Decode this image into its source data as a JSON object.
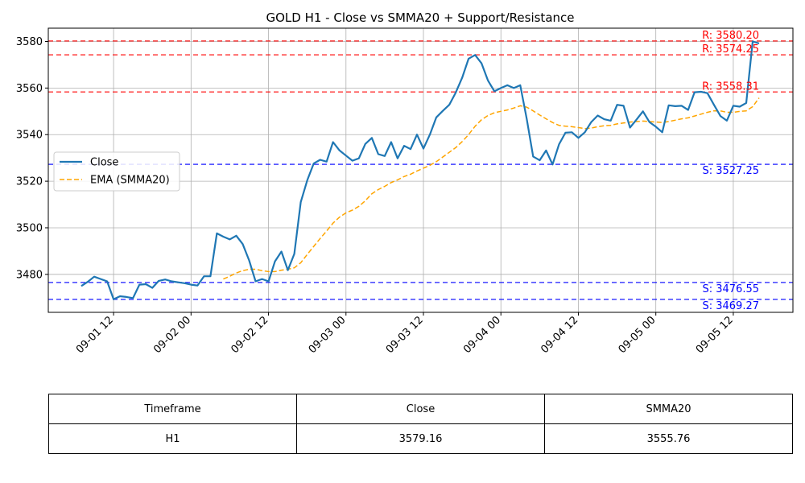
{
  "chart_data": {
    "type": "line",
    "title": "GOLD H1 - Close vs SMMA20 + Support/Resistance",
    "xlabel": "",
    "ylabel": "",
    "x_tick_labels": [
      "09-01 12",
      "09-02 00",
      "09-02 12",
      "09-03 00",
      "09-03 12",
      "09-04 00",
      "09-04 12",
      "09-05 00",
      "09-05 12"
    ],
    "y_ticks": [
      3480,
      3500,
      3520,
      3540,
      3560,
      3580
    ],
    "ylim": [
      3463.7,
      3585.7
    ],
    "grid": true,
    "legend_position": "center-left",
    "series": [
      {
        "name": "Close",
        "color": "#1f77b4",
        "style": "solid",
        "values": [
          3475.0,
          3476.8,
          3479.0,
          3478.0,
          3477.0,
          3469.3,
          3470.6,
          3470.3,
          3469.8,
          3475.6,
          3475.8,
          3474.2,
          3477.2,
          3477.8,
          3477.0,
          3476.6,
          3476.2,
          3475.6,
          3475.2,
          3479.2,
          3479.2,
          3497.6,
          3496.2,
          3495.0,
          3496.6,
          3493.0,
          3486.0,
          3477.0,
          3478.0,
          3477.0,
          3485.6,
          3489.8,
          3481.8,
          3488.8,
          3511.0,
          3520.4,
          3527.6,
          3529.2,
          3528.4,
          3536.8,
          3533.2,
          3531.0,
          3528.8,
          3529.8,
          3536.0,
          3538.6,
          3531.6,
          3530.8,
          3536.8,
          3529.8,
          3535.2,
          3533.8,
          3540.0,
          3534.0,
          3540.0,
          3547.4,
          3550.2,
          3552.8,
          3558.0,
          3564.4,
          3572.6,
          3574.2,
          3570.6,
          3563.2,
          3558.6,
          3560.0,
          3561.2,
          3560.0,
          3561.2,
          3546.8,
          3530.6,
          3529.0,
          3533.2,
          3527.2,
          3535.8,
          3540.8,
          3541.0,
          3538.6,
          3541.0,
          3545.4,
          3548.2,
          3546.6,
          3546.0,
          3552.8,
          3552.4,
          3543.0,
          3546.4,
          3550.0,
          3545.4,
          3543.4,
          3541.0,
          3552.6,
          3552.2,
          3552.4,
          3550.6,
          3558.2,
          3558.4,
          3557.8,
          3552.8,
          3548.0,
          3546.0,
          3552.4,
          3552.0,
          3553.6,
          3580.0,
          3579.16
        ]
      },
      {
        "name": "EMA (SMMA20)",
        "color": "#ffa500",
        "style": "dashed",
        "values": [
          null,
          null,
          null,
          null,
          null,
          null,
          null,
          null,
          null,
          null,
          null,
          null,
          null,
          null,
          null,
          null,
          null,
          null,
          null,
          null,
          null,
          null,
          3478.0,
          3479.2,
          3480.6,
          3481.6,
          3482.2,
          3482.2,
          3481.6,
          3481.2,
          3481.2,
          3481.8,
          3482.2,
          3482.8,
          3485.0,
          3488.6,
          3492.0,
          3495.4,
          3498.6,
          3502.0,
          3504.6,
          3506.4,
          3507.6,
          3509.2,
          3511.6,
          3514.6,
          3516.4,
          3517.8,
          3519.4,
          3520.6,
          3522.0,
          3523.0,
          3524.4,
          3525.6,
          3526.8,
          3528.4,
          3530.4,
          3532.4,
          3534.4,
          3537.0,
          3540.0,
          3543.6,
          3546.4,
          3548.2,
          3549.4,
          3550.0,
          3550.6,
          3551.4,
          3552.4,
          3551.8,
          3550.2,
          3548.4,
          3546.8,
          3545.2,
          3544.0,
          3543.6,
          3543.4,
          3543.0,
          3542.6,
          3542.8,
          3543.4,
          3543.8,
          3544.0,
          3544.6,
          3545.0,
          3545.4,
          3545.6,
          3545.8,
          3545.6,
          3545.4,
          3545.2,
          3545.6,
          3546.2,
          3546.8,
          3547.2,
          3548.0,
          3548.8,
          3549.6,
          3550.2,
          3550.2,
          3549.6,
          3549.6,
          3550.0,
          3550.2,
          3552.0,
          3555.76
        ]
      }
    ],
    "resistance": [
      3580.2,
      3574.25,
      3558.31
    ],
    "support": [
      3527.25,
      3476.55,
      3469.27
    ],
    "level_labels": {
      "resistance": [
        "R: 3580.20",
        "R: 3574.25",
        "R: 3558.31"
      ],
      "support": [
        "S: 3527.25",
        "S: 3476.55",
        "S: 3469.27"
      ]
    },
    "colors": {
      "resistance": "#ff0000",
      "support": "#0000ff"
    }
  },
  "table": {
    "headers": [
      "Timeframe",
      "Close",
      "SMMA20"
    ],
    "rows": [
      [
        "H1",
        "3579.16",
        "3555.76"
      ]
    ]
  }
}
